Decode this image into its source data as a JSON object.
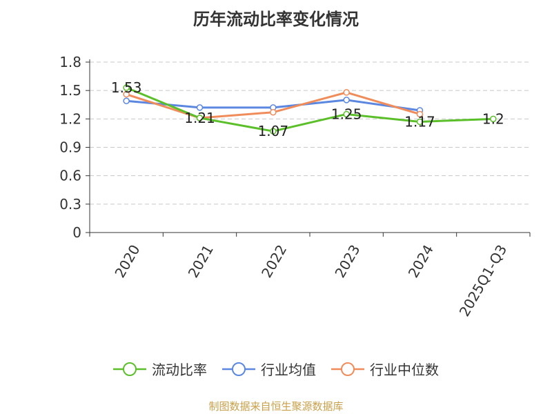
{
  "chart_data": {
    "type": "line",
    "title": "历年流动比率变化情况",
    "categories": [
      "2020",
      "2021",
      "2022",
      "2023",
      "2024",
      "2025Q1-Q3"
    ],
    "ylim": [
      0,
      1.8
    ],
    "yticks": [
      "0",
      "0.3",
      "0.6",
      "0.9",
      "1.2",
      "1.5",
      "1.8"
    ],
    "grid": true,
    "legend_position": "bottom",
    "series": [
      {
        "name": "流动比率",
        "color": "#5bbf2a",
        "values": [
          1.53,
          1.21,
          1.07,
          1.25,
          1.17,
          1.2
        ],
        "labels": [
          "1.53",
          "1.21",
          "1.07",
          "1.25",
          "1.17",
          "1.2"
        ]
      },
      {
        "name": "行业均值",
        "color": "#5b87e0",
        "values": [
          1.39,
          1.32,
          1.32,
          1.4,
          1.29,
          null
        ]
      },
      {
        "name": "行业中位数",
        "color": "#f08c5a",
        "values": [
          1.46,
          1.21,
          1.27,
          1.48,
          1.25,
          null
        ]
      }
    ]
  },
  "source_note": "制图数据来自恒生聚源数据库"
}
